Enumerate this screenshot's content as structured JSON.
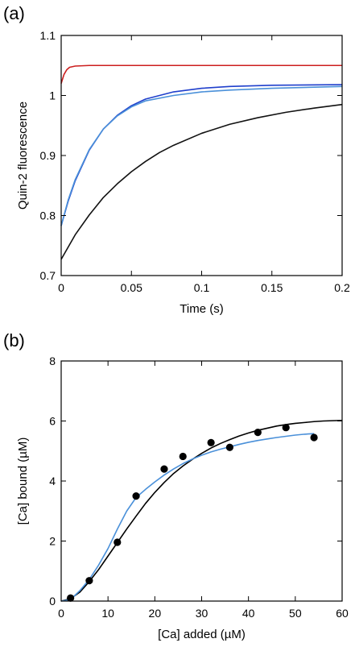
{
  "chart_data": [
    {
      "panel_label": "(a)",
      "type": "line",
      "xlabel": "Time (s)",
      "ylabel": "Quin-2 fluorescence",
      "xlim": [
        0,
        0.2
      ],
      "ylim": [
        0.7,
        1.1
      ],
      "xticks": [
        "0",
        "0.05",
        "0.1",
        "0.15",
        "0.2"
      ],
      "yticks": [
        "0.7",
        "0.8",
        "0.9",
        "1",
        "1.1"
      ],
      "grid": false,
      "series": [
        {
          "color": "#cc1f1f",
          "x": [
            0,
            0.002,
            0.004,
            0.006,
            0.01,
            0.02,
            0.05,
            0.1,
            0.15,
            0.2
          ],
          "y": [
            1.02,
            1.035,
            1.043,
            1.047,
            1.049,
            1.05,
            1.05,
            1.05,
            1.05,
            1.05
          ]
        },
        {
          "color": "#1f3fcc",
          "x": [
            0,
            0.005,
            0.01,
            0.02,
            0.03,
            0.04,
            0.05,
            0.06,
            0.08,
            0.1,
            0.12,
            0.15,
            0.2
          ],
          "y": [
            0.783,
            0.824,
            0.858,
            0.909,
            0.944,
            0.967,
            0.983,
            0.994,
            1.006,
            1.012,
            1.015,
            1.017,
            1.018
          ]
        },
        {
          "color": "#4a90d9",
          "x": [
            0,
            0.005,
            0.01,
            0.02,
            0.03,
            0.04,
            0.05,
            0.06,
            0.08,
            0.1,
            0.12,
            0.15,
            0.2
          ],
          "y": [
            0.783,
            0.826,
            0.86,
            0.91,
            0.944,
            0.966,
            0.981,
            0.991,
            1.0,
            1.006,
            1.009,
            1.012,
            1.015
          ]
        },
        {
          "color": "#111111",
          "x": [
            0,
            0.01,
            0.02,
            0.03,
            0.04,
            0.05,
            0.06,
            0.07,
            0.08,
            0.1,
            0.12,
            0.14,
            0.16,
            0.18,
            0.2
          ],
          "y": [
            0.727,
            0.768,
            0.801,
            0.83,
            0.853,
            0.873,
            0.89,
            0.905,
            0.917,
            0.937,
            0.952,
            0.963,
            0.972,
            0.979,
            0.985
          ]
        }
      ]
    },
    {
      "panel_label": "(b)",
      "type": "scatter",
      "xlabel": "[Ca] added (µM)",
      "ylabel": "[Ca] bound (µM)",
      "xlim": [
        0,
        60
      ],
      "ylim": [
        0,
        8
      ],
      "xticks": [
        "0",
        "10",
        "20",
        "30",
        "40",
        "50",
        "60"
      ],
      "yticks": [
        "0",
        "2",
        "4",
        "6",
        "8"
      ],
      "grid": false,
      "points": {
        "color": "#000000",
        "x": [
          2,
          6,
          12,
          16,
          22,
          26,
          32,
          36,
          42,
          48,
          54
        ],
        "y": [
          0.1,
          0.68,
          1.96,
          3.5,
          4.4,
          4.82,
          5.28,
          5.12,
          5.62,
          5.78,
          5.45
        ]
      },
      "series": [
        {
          "color": "#000000",
          "x": [
            0,
            2,
            4,
            6,
            8,
            10,
            12,
            14,
            16,
            18,
            20,
            22,
            24,
            26,
            28,
            30,
            32,
            34,
            36,
            38,
            40,
            42,
            44,
            46,
            48,
            50,
            52,
            54,
            56,
            58,
            60
          ],
          "y": [
            0,
            0.08,
            0.3,
            0.65,
            1.05,
            1.5,
            1.95,
            2.4,
            2.83,
            3.25,
            3.62,
            3.95,
            4.25,
            4.5,
            4.72,
            4.92,
            5.1,
            5.25,
            5.38,
            5.5,
            5.6,
            5.69,
            5.76,
            5.83,
            5.88,
            5.92,
            5.95,
            5.98,
            6.0,
            6.01,
            6.02
          ]
        },
        {
          "color": "#4a90d9",
          "x": [
            0,
            2,
            4,
            6,
            8,
            10,
            12,
            14,
            16,
            18,
            20,
            22,
            24,
            26,
            28,
            30,
            32,
            34,
            36,
            38,
            40,
            42,
            44,
            46,
            48,
            50,
            52,
            54
          ],
          "y": [
            0,
            0.05,
            0.35,
            0.72,
            1.2,
            1.75,
            2.4,
            3.0,
            3.45,
            3.72,
            3.97,
            4.2,
            4.4,
            4.58,
            4.73,
            4.86,
            4.97,
            5.06,
            5.14,
            5.22,
            5.29,
            5.35,
            5.4,
            5.45,
            5.49,
            5.53,
            5.56,
            5.58
          ]
        }
      ]
    }
  ]
}
